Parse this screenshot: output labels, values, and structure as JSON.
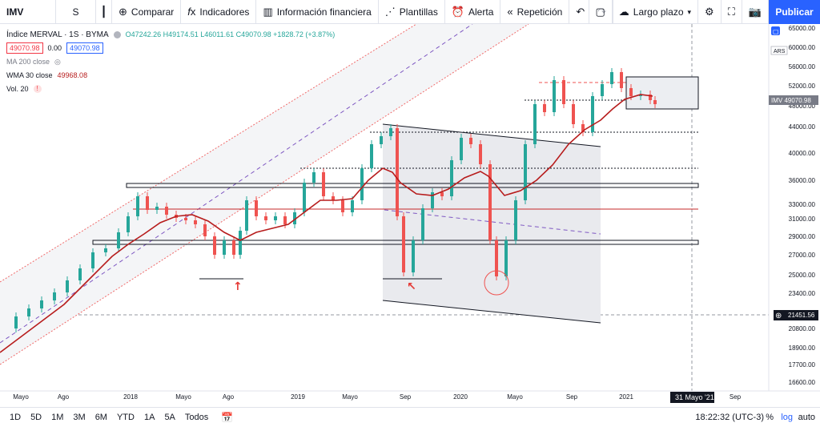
{
  "toolbar": {
    "symbol": "IMV",
    "interval": "S",
    "compare": "Comparar",
    "indicators": "Indicadores",
    "financials": "Información financiera",
    "templates": "Plantillas",
    "alert": "Alerta",
    "replay": "Repetición",
    "layout_name": "Largo plazo",
    "publish": "Publicar"
  },
  "legend": {
    "title": "Índice MERVAL · 1S · BYMA",
    "ohlc": "O47242.26 H49174.51 L46011.61 C49070.98 +1828.72 (+3.87%)",
    "price_left": "49070.98",
    "spread": "0.00",
    "price_right": "49070.98",
    "ma200": "MA 200 close",
    "wma30": "WMA 30 close",
    "wma30_value": "49968.08",
    "vol": "Vol. 20"
  },
  "price_axis": {
    "currency": "ARS",
    "ticks": [
      "65000.00",
      "60000.00",
      "56000.00",
      "52000.00",
      "48000.00",
      "44000.00",
      "40000.00",
      "36000.00",
      "33000.00",
      "31000.00",
      "29000.00",
      "27000.00",
      "25000.00",
      "23400.00",
      "20800.00",
      "18900.00",
      "17700.00",
      "16600.00"
    ],
    "last_label": "IMV  49070.98",
    "crosshair_value": "21451.56"
  },
  "time_axis": {
    "ticks": [
      "Mayo",
      "Ago",
      "2018",
      "Mayo",
      "Ago",
      "2019",
      "Mayo",
      "Sep",
      "2020",
      "Mayo",
      "Sep",
      "2021",
      "Sep"
    ],
    "crosshair_date": "31 Mayo '21"
  },
  "bottom_bar": {
    "ranges": [
      "1D",
      "5D",
      "1M",
      "3M",
      "6M",
      "YTD",
      "1A",
      "5A",
      "Todos"
    ],
    "clock": "18:22:32 (UTC-3)",
    "percent": "%",
    "log": "log",
    "auto": "auto"
  },
  "colors": {
    "up": "#26a69a",
    "down": "#ef5350",
    "wma": "#b71c1c",
    "accent": "#2962ff"
  }
}
